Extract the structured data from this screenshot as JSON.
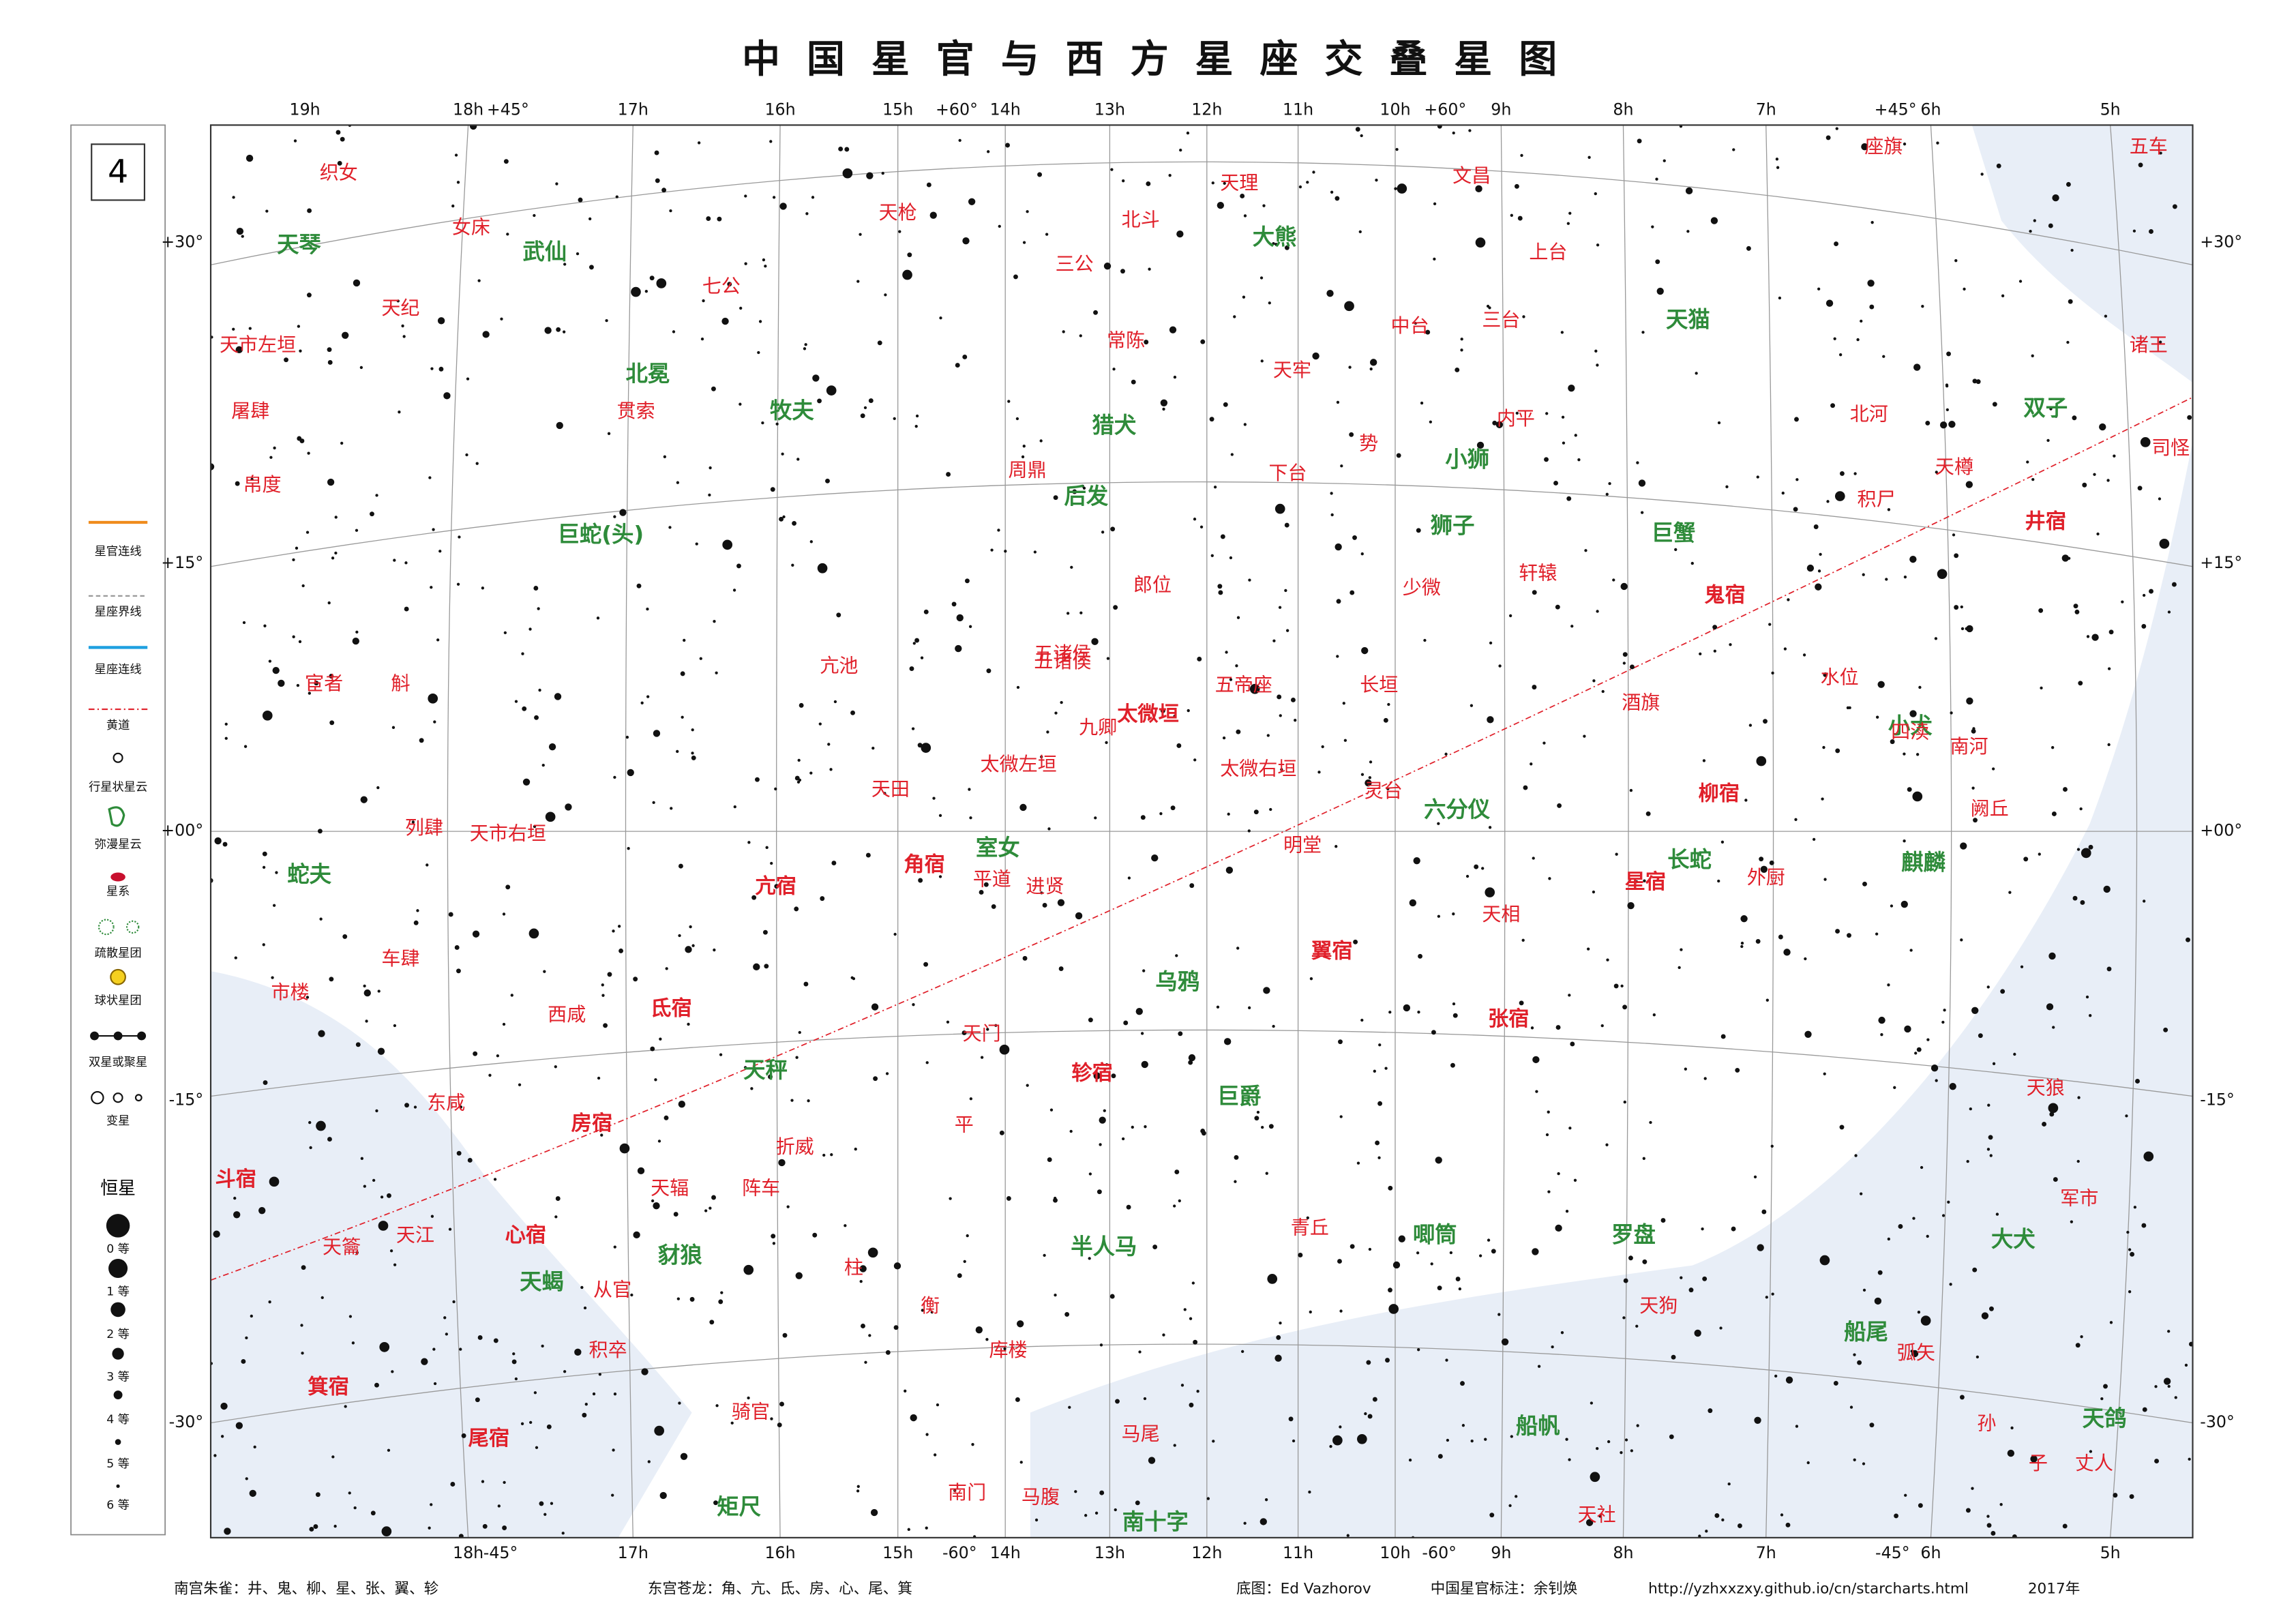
{
  "title": "中国星官与西方星座交叠星图",
  "page_number": "4",
  "top_labels": [
    "19h",
    "18h",
    "+45°",
    "17h",
    "16h",
    "15h",
    "+60°",
    "14h",
    "13h",
    "12h",
    "11h",
    "10h",
    "+60°",
    "9h",
    "8h",
    "7h",
    "+45°",
    "6h",
    "5h"
  ],
  "bottom_labels": [
    "18h",
    "-45°",
    "17h",
    "16h",
    "15h",
    "-60°",
    "14h",
    "13h",
    "12h",
    "11h",
    "10h",
    "-60°",
    "9h",
    "8h",
    "7h",
    "-45°",
    "6h",
    "5h"
  ],
  "dec_labels": [
    "+30°",
    "+15°",
    "+00°",
    "-15°",
    "-30°"
  ],
  "legend": {
    "items": [
      "星官连线",
      "星座界线",
      "星座连线",
      "黄道",
      "行星状星云",
      "弥漫星云",
      "星系",
      "疏散星团",
      "球状星团",
      "双星或聚星",
      "变星"
    ],
    "stars_title": "恒星",
    "magnitudes": [
      "0 等",
      "1 等",
      "2 等",
      "3 等",
      "4 等",
      "5 等",
      "6 等"
    ]
  },
  "constellations": [
    "天琴",
    "武仙",
    "北冕",
    "牧夫",
    "猎犬",
    "大熊",
    "天猫",
    "小狮",
    "巨蛇(头)",
    "后发",
    "狮子",
    "巨蟹",
    "双子",
    "小犬",
    "室女",
    "六分仪",
    "长蛇",
    "麒麟",
    "蛇夫",
    "乌鸦",
    "天秤",
    "巨爵",
    "豺狼",
    "半人马",
    "唧筒",
    "罗盘",
    "大犬",
    "天蝎",
    "船尾",
    "船帆",
    "矩尺",
    "南十字",
    "天鸽"
  ],
  "asterisms": [
    "织女",
    "天纪",
    "女床",
    "天市左垣",
    "屠肆",
    "帛度",
    "贯索",
    "七公",
    "天枪",
    "三公",
    "北斗",
    "天理",
    "常陈",
    "上台",
    "文昌",
    "中台",
    "三台",
    "天牢",
    "内平",
    "下台",
    "势",
    "周鼎",
    "郎位",
    "五帝座",
    "长垣",
    "少微",
    "轩辕",
    "水位",
    "酒旗",
    "外厨",
    "天相",
    "天田",
    "平道",
    "进贤",
    "明堂",
    "灵台",
    "太微右垣",
    "太微左垣",
    "五诸侯",
    "九卿",
    "亢池",
    "宦者",
    "斛",
    "列肆",
    "天市右垣",
    "车肆",
    "市楼",
    "东咸",
    "西咸",
    "天门",
    "平",
    "折威",
    "阵车",
    "天辐",
    "骑官",
    "库楼",
    "衡",
    "柱",
    "马尾",
    "青丘",
    "天狗",
    "弧矢",
    "军市",
    "天狼",
    "南河",
    "北河",
    "积尸",
    "座旗",
    "五车",
    "诸王",
    "司怪",
    "天樽",
    "四渎",
    "阙丘",
    "天江",
    "天籥",
    "从官",
    "积卒",
    "南门",
    "马腹",
    "天社",
    "孙",
    "子",
    "丈人",
    "五诸侯"
  ],
  "mansions": [
    "井宿",
    "鬼宿",
    "柳宿",
    "星宿",
    "张宿",
    "翼宿",
    "轸宿",
    "角宿",
    "亢宿",
    "氐宿",
    "房宿",
    "心宿",
    "尾宿",
    "箕宿",
    "斗宿",
    "太微垣"
  ],
  "footer": [
    "南宫朱雀：井、鬼、柳、星、张、翼、轸",
    "东宫苍龙：角、亢、氐、房、心、尾、箕",
    "底图：Ed Vazhorov",
    "中国星官标注：余钊焕",
    "http://yzhxxzxy.github.io/cn/starcharts.html",
    "2017年"
  ]
}
